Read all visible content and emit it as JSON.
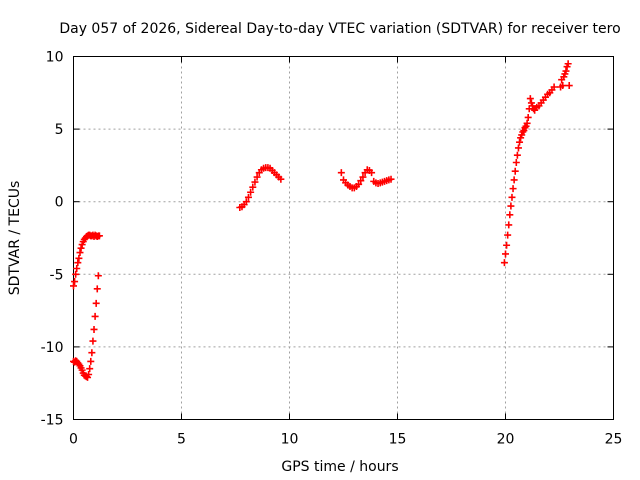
{
  "chart_data": {
    "type": "scatter",
    "title": "Day 057 of 2026, Sidereal Day-to-day VTEC variation (SDTVAR) for receiver tero",
    "xlabel": "GPS time / hours",
    "ylabel": "SDTVAR / TECUs",
    "xlim": [
      0,
      25
    ],
    "ylim": [
      -15,
      10
    ],
    "xticks": [
      0,
      5,
      10,
      15,
      20,
      25
    ],
    "yticks": [
      -15,
      -10,
      -5,
      0,
      5,
      10
    ],
    "xtick_labels": [
      "0",
      "5",
      "10",
      "15",
      "20",
      "25"
    ],
    "ytick_labels": [
      "-15",
      "-10",
      "-5",
      "0",
      "5",
      "10"
    ],
    "grid": true,
    "marker": "+",
    "series": [
      {
        "name": "SDTVAR",
        "color": "#ff0000",
        "segments": [
          {
            "x": [
              0.0,
              0.05,
              0.1,
              0.15,
              0.2,
              0.25,
              0.3,
              0.35,
              0.4,
              0.45,
              0.5,
              0.55,
              0.6,
              0.65,
              0.7,
              0.75,
              0.8,
              0.85,
              0.9,
              0.95,
              1.0,
              1.05,
              1.1,
              1.15,
              1.2
            ],
            "y": [
              -5.8,
              -5.5,
              -5.0,
              -4.6,
              -4.2,
              -3.9,
              -3.5,
              -3.2,
              -2.95,
              -2.75,
              -2.6,
              -2.5,
              -2.4,
              -2.35,
              -2.3,
              -2.3,
              -2.35,
              -2.35,
              -2.3,
              -2.4,
              -2.3,
              -2.35,
              -2.4,
              -2.35,
              -2.35
            ]
          },
          {
            "x": [
              0.0,
              0.05,
              0.1,
              0.15,
              0.2,
              0.25,
              0.3,
              0.35,
              0.4,
              0.45,
              0.5,
              0.55,
              0.6,
              0.65,
              0.7,
              0.75,
              0.8,
              0.85,
              0.9,
              0.95,
              1.0,
              1.05,
              1.1,
              1.15
            ],
            "y": [
              -11.0,
              -11.05,
              -10.95,
              -11.0,
              -11.1,
              -11.2,
              -11.3,
              -11.45,
              -11.6,
              -11.8,
              -11.95,
              -12.0,
              -12.05,
              -12.1,
              -11.9,
              -11.5,
              -11.0,
              -10.4,
              -9.6,
              -8.8,
              -7.9,
              -7.0,
              -6.0,
              -5.1
            ]
          },
          {
            "x": [
              7.7,
              7.8,
              7.9,
              8.0,
              8.1,
              8.2,
              8.3,
              8.4,
              8.5,
              8.6,
              8.7,
              8.8,
              8.9,
              9.0,
              9.1,
              9.2,
              9.3,
              9.4,
              9.5,
              9.6
            ],
            "y": [
              -0.4,
              -0.35,
              -0.2,
              0.0,
              0.3,
              0.65,
              1.0,
              1.35,
              1.7,
              2.0,
              2.2,
              2.3,
              2.35,
              2.35,
              2.3,
              2.15,
              2.0,
              1.85,
              1.7,
              1.55
            ]
          },
          {
            "x": [
              12.4,
              12.5,
              12.6,
              12.7,
              12.8,
              12.9,
              13.0,
              13.1,
              13.2,
              13.3,
              13.4,
              13.5,
              13.6,
              13.7,
              13.8
            ],
            "y": [
              2.0,
              1.5,
              1.3,
              1.15,
              1.05,
              0.95,
              0.95,
              1.05,
              1.2,
              1.45,
              1.7,
              2.0,
              2.2,
              2.15,
              2.0
            ]
          },
          {
            "x": [
              13.9,
              14.0,
              14.1,
              14.2,
              14.3,
              14.4,
              14.5,
              14.6,
              14.7
            ],
            "y": [
              1.4,
              1.3,
              1.25,
              1.3,
              1.35,
              1.4,
              1.45,
              1.5,
              1.55
            ]
          },
          {
            "x": [
              19.95,
              20.0,
              20.05,
              20.1,
              20.15,
              20.2,
              20.25,
              20.3,
              20.35,
              20.4,
              20.45,
              20.5,
              20.55,
              20.6,
              20.65,
              20.7,
              20.75,
              20.8,
              20.85,
              20.9,
              20.95,
              21.0,
              21.05,
              21.1,
              21.15,
              21.2,
              21.25,
              21.3
            ],
            "y": [
              -4.2,
              -3.6,
              -3.0,
              -2.3,
              -1.6,
              -0.9,
              -0.3,
              0.3,
              0.9,
              1.5,
              2.1,
              2.7,
              3.2,
              3.7,
              4.1,
              4.4,
              4.6,
              4.8,
              4.9,
              5.1,
              5.2,
              5.4,
              5.8,
              6.4,
              7.1,
              6.8,
              6.6,
              6.4
            ]
          },
          {
            "x": [
              21.35,
              21.45,
              21.55,
              21.65,
              21.75,
              21.85,
              21.95,
              22.05,
              22.15,
              22.25
            ],
            "y": [
              6.3,
              6.5,
              6.6,
              6.8,
              7.0,
              7.2,
              7.4,
              7.5,
              7.7,
              7.9
            ]
          },
          {
            "x": [
              22.55,
              22.6,
              22.65,
              22.7,
              22.75,
              22.8,
              22.85,
              22.9,
              22.95
            ],
            "y": [
              7.9,
              8.4,
              8.0,
              8.6,
              8.8,
              9.0,
              9.3,
              9.5,
              8.0
            ]
          }
        ]
      }
    ]
  }
}
